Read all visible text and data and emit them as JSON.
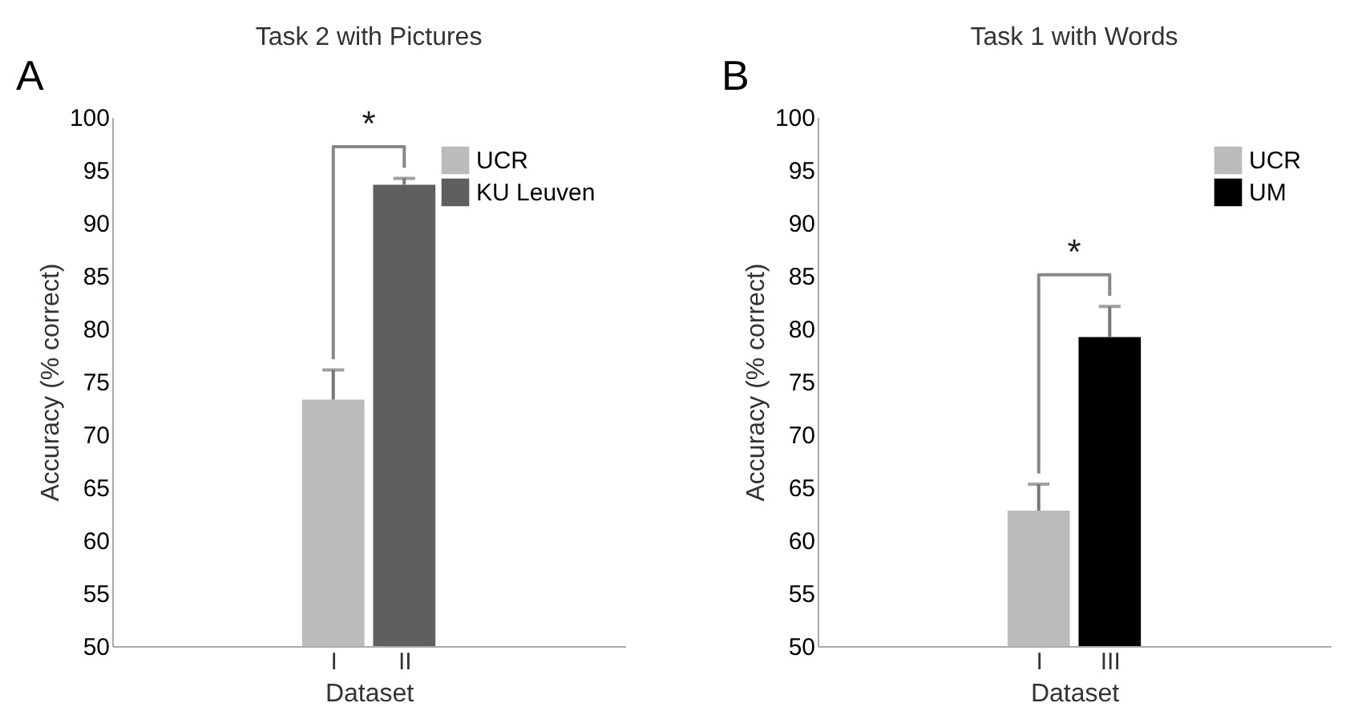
{
  "chart_data": [
    {
      "type": "bar",
      "title": "Task 2 with Pictures",
      "xlabel": "Dataset",
      "ylabel": "Accuracy (% correct)",
      "categories": [
        "I",
        "II"
      ],
      "series": [
        {
          "name": "UCR",
          "color": "#bbbbbb",
          "values": [
            73.3,
            null
          ],
          "errors": [
            2.8,
            null
          ]
        },
        {
          "name": "KU Leuven",
          "color": "#5f5f5f",
          "values": [
            null,
            93.6
          ],
          "errors": [
            null,
            0.6
          ]
        }
      ],
      "ylim": [
        50,
        100
      ],
      "yticks": [
        50,
        55,
        60,
        65,
        70,
        75,
        80,
        85,
        90,
        95,
        100
      ],
      "grid": false,
      "legend": "top right",
      "annotations": [
        "A",
        "*"
      ]
    },
    {
      "type": "bar",
      "title": "Task 1 with Words",
      "xlabel": "Dataset",
      "ylabel": "Accuracy (% correct)",
      "categories": [
        "I",
        "III"
      ],
      "series": [
        {
          "name": "UCR",
          "color": "#bbbbbb",
          "values": [
            62.8,
            null
          ],
          "errors": [
            2.5,
            null
          ]
        },
        {
          "name": "UM",
          "color": "#000000",
          "values": [
            null,
            79.2
          ],
          "errors": [
            null,
            2.9
          ]
        }
      ],
      "ylim": [
        50,
        100
      ],
      "yticks": [
        50,
        55,
        60,
        65,
        70,
        75,
        80,
        85,
        90,
        95,
        100
      ],
      "grid": false,
      "legend": "top right",
      "annotations": [
        "B",
        "*"
      ]
    }
  ]
}
